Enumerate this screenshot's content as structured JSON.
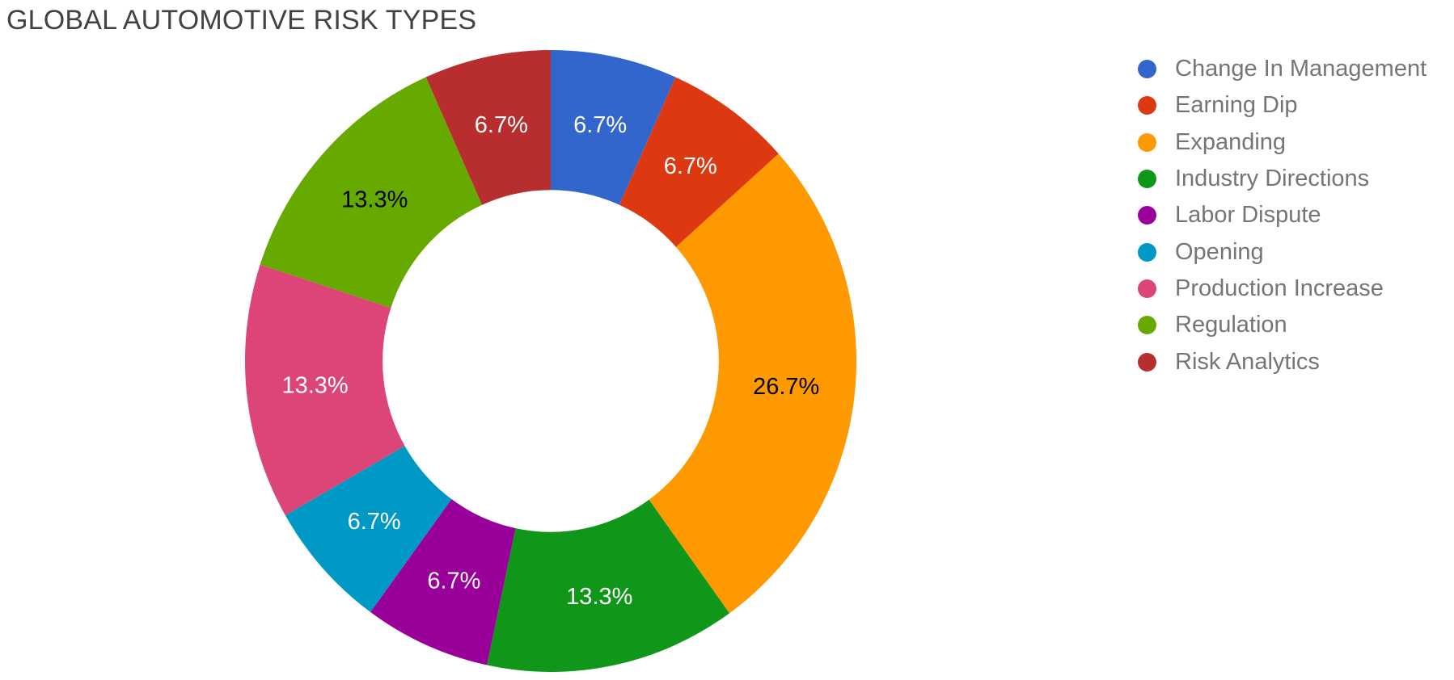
{
  "title": "GLOBAL AUTOMOTIVE RISK TYPES",
  "title_color": "#424242",
  "chart_data": {
    "type": "pie",
    "subtype": "donut",
    "title": "GLOBAL AUTOMOTIVE RISK TYPES",
    "legend_position": "right",
    "direction": "clockwise",
    "start_angle_deg": 0,
    "donut_hole_ratio": 0.55,
    "categories": [
      "Change In Management",
      "Earning Dip",
      "Expanding",
      "Industry Directions",
      "Labor Dispute",
      "Opening",
      "Production Increase",
      "Regulation",
      "Risk Analytics"
    ],
    "values": [
      6.7,
      6.7,
      26.7,
      13.3,
      6.7,
      6.7,
      13.3,
      13.3,
      6.7
    ],
    "percent_labels": [
      "6.7%",
      "6.7%",
      "26.7%",
      "13.3%",
      "6.7%",
      "6.7%",
      "13.3%",
      "13.3%",
      "6.7%"
    ],
    "slice_colors": [
      "#3366CC",
      "#DC3912",
      "#FF9900",
      "#109618",
      "#990099",
      "#0099C6",
      "#DD4477",
      "#66AA00",
      "#B82E2E"
    ],
    "slice_label_colors": [
      "#FFFFFF",
      "#FFFFFF",
      "#000000",
      "#FFFFFF",
      "#FFFFFF",
      "#FFFFFF",
      "#FFFFFF",
      "#000000",
      "#FFFFFF"
    ],
    "legend_text_color": "#757575"
  }
}
